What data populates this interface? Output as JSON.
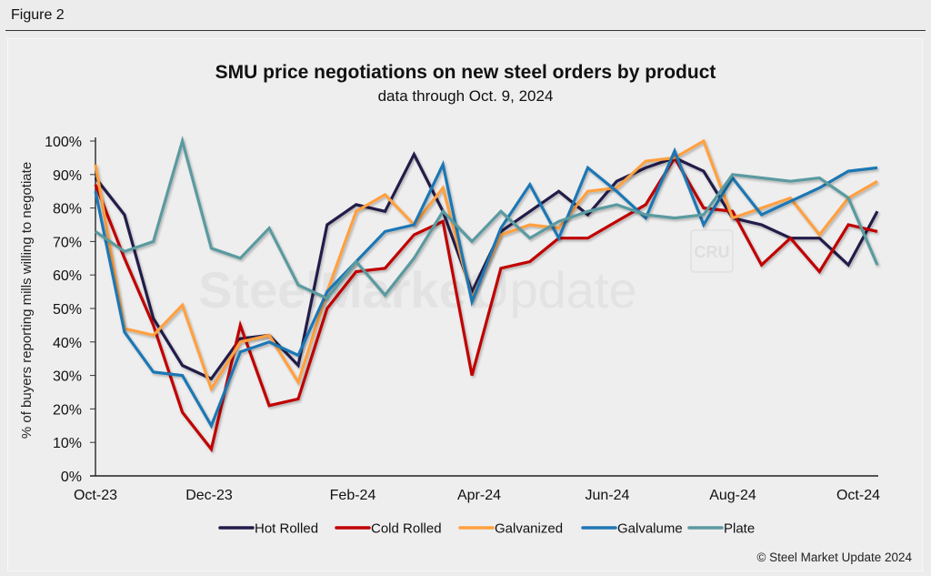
{
  "figure_label": "Figure 2",
  "watermark": {
    "brand_bold": "SteelMarket",
    "brand_light": " Update",
    "badge": "CRU"
  },
  "copyright": "© Steel Market Update 2024",
  "chart_data": {
    "type": "line",
    "title": "SMU price negotiations on new steel orders by product",
    "subtitle": "data through Oct. 9, 2024",
    "xlabel": "",
    "ylabel": "% of buyers reporting mills willing to negotiate",
    "ylim": [
      0,
      100
    ],
    "yticks": [
      "0%",
      "10%",
      "20%",
      "30%",
      "40%",
      "50%",
      "60%",
      "70%",
      "80%",
      "90%",
      "100%"
    ],
    "xticks": [
      "Oct-23",
      "Dec-23",
      "Feb-24",
      "Apr-24",
      "Jun-24",
      "Aug-24",
      "Oct-24"
    ],
    "grid": false,
    "legend_position": "bottom",
    "n_points": 28,
    "series": [
      {
        "name": "Hot Rolled",
        "color": "#221c4a",
        "values": [
          89,
          78,
          47,
          33,
          29,
          41,
          42,
          33,
          75,
          81,
          79,
          96,
          79,
          55,
          73,
          79,
          85,
          78,
          88,
          92,
          95,
          91,
          77,
          75,
          71,
          71,
          63,
          79
        ]
      },
      {
        "name": "Cold Rolled",
        "color": "#c00000",
        "values": [
          87,
          65,
          45,
          19,
          8,
          45,
          21,
          23,
          50,
          61,
          62,
          72,
          76,
          30,
          62,
          64,
          71,
          71,
          76,
          81,
          95,
          80,
          79,
          63,
          71,
          61,
          75,
          73
        ]
      },
      {
        "name": "Galvanized",
        "color": "#ffa040",
        "values": [
          93,
          44,
          42,
          51,
          26,
          40,
          42,
          28,
          55,
          79,
          84,
          75,
          86,
          53,
          72,
          75,
          74,
          85,
          86,
          94,
          95,
          100,
          77,
          80,
          83,
          72,
          83,
          88
        ]
      },
      {
        "name": "Galvalume",
        "color": "#1f77b4",
        "values": [
          85,
          43,
          31,
          30,
          15,
          37,
          40,
          36,
          55,
          64,
          73,
          75,
          93,
          52,
          74,
          87,
          71,
          92,
          85,
          77,
          97,
          75,
          89,
          78,
          82,
          86,
          91,
          92
        ]
      },
      {
        "name": "Plate",
        "color": "#5a9aa0",
        "values": [
          73,
          67,
          70,
          100,
          68,
          65,
          74,
          57,
          53,
          64,
          54,
          65,
          79,
          70,
          79,
          71,
          76,
          79,
          81,
          78,
          77,
          78,
          90,
          89,
          88,
          89,
          83,
          63
        ]
      }
    ]
  }
}
